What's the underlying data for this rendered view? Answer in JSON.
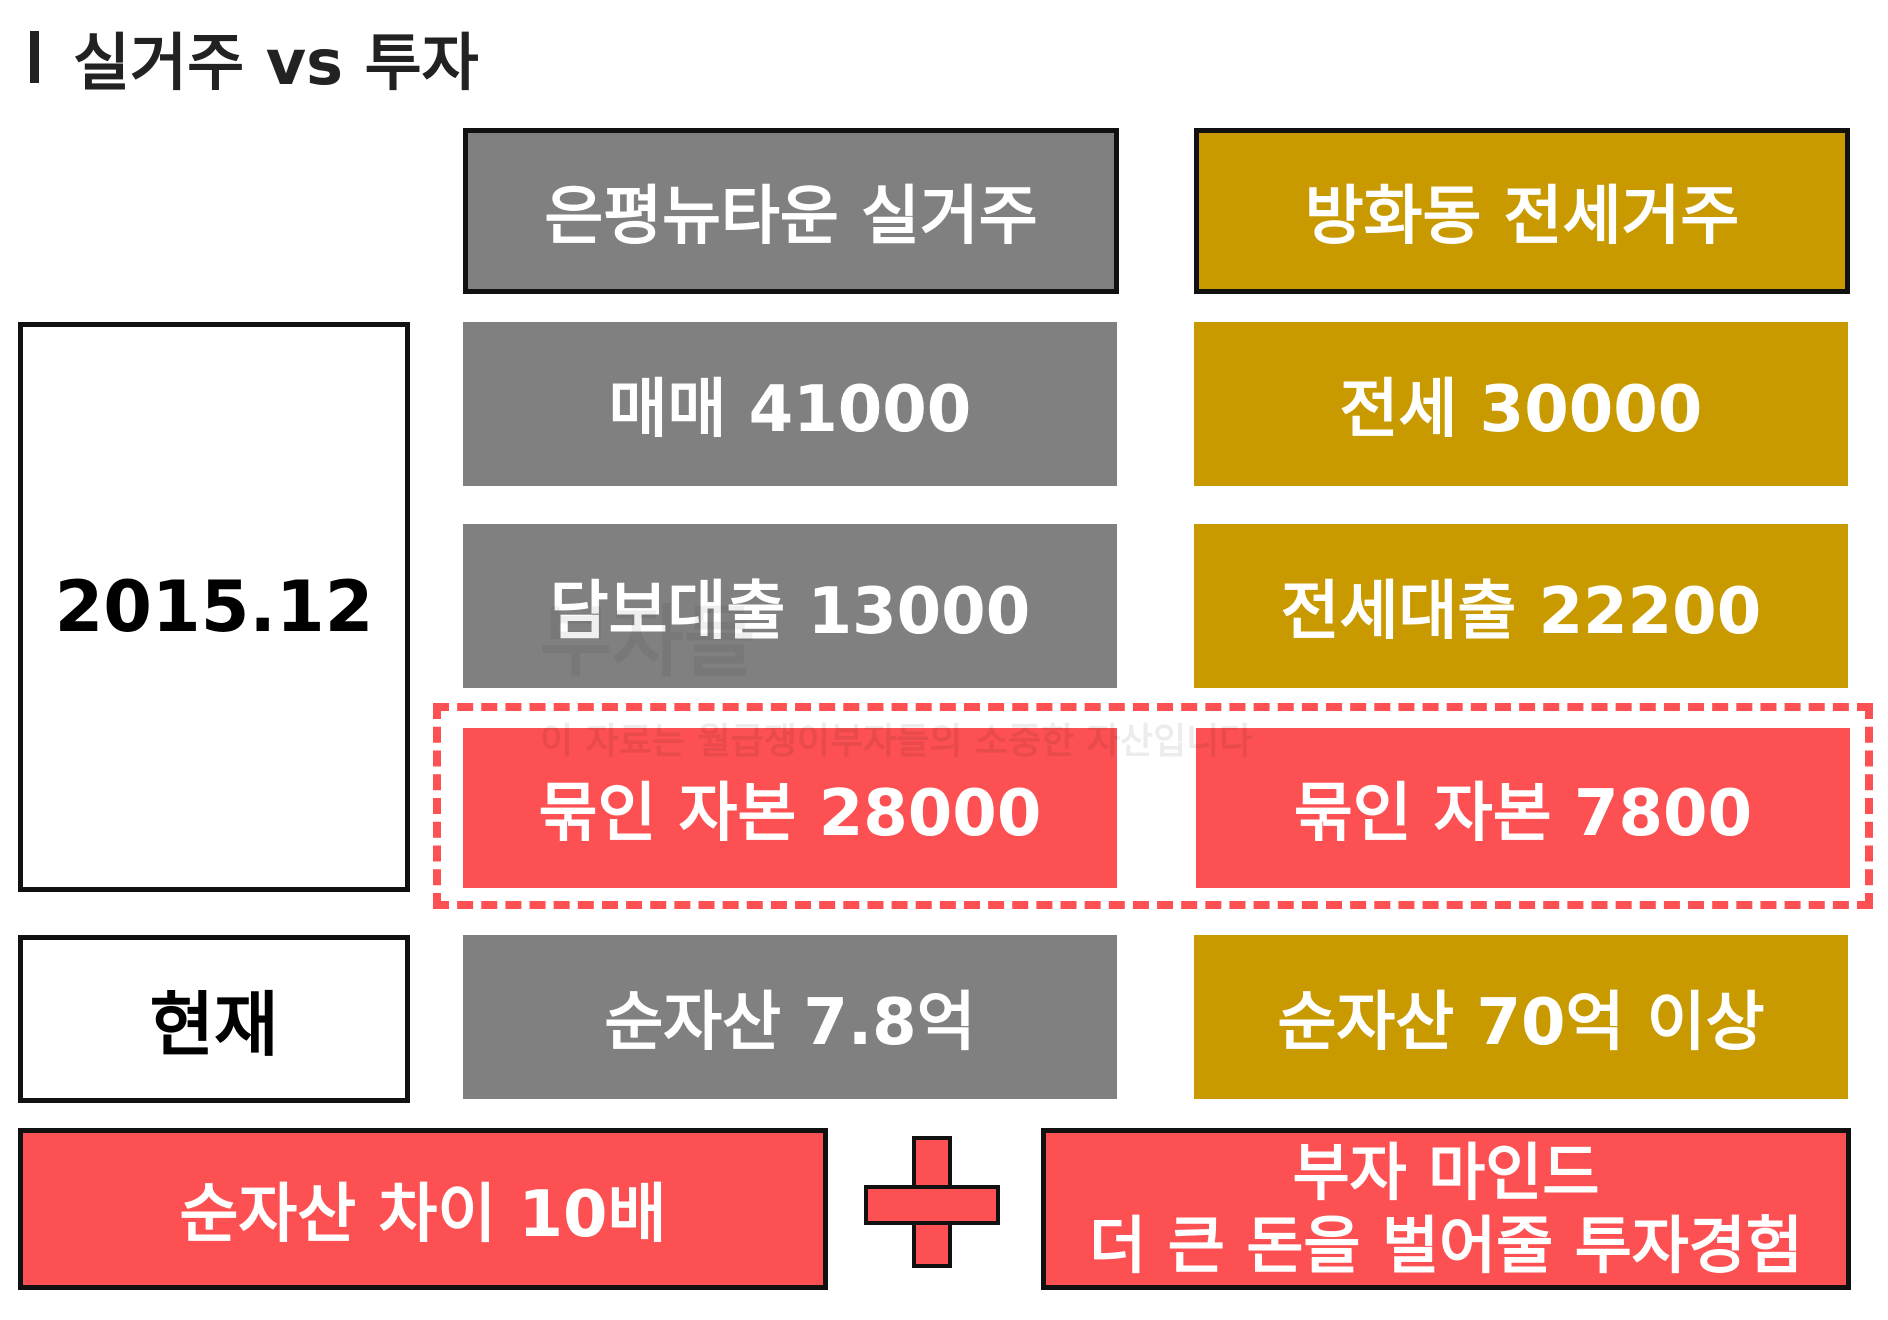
{
  "title": "실거주 vs 투자",
  "columns": {
    "left_header": "은평뉴타운 실거주",
    "right_header": "방화동 전세거주"
  },
  "rows": {
    "date_label": "2015.12",
    "now_label": "현재",
    "left": {
      "purchase": "매매 41000",
      "loan": "담보대출 13000",
      "capital": "묶인 자본 28000",
      "net_asset": "순자산 7.8억"
    },
    "right": {
      "jeonse": "전세 30000",
      "loan": "전세대출 22200",
      "capital": "묶인 자본 7800",
      "net_asset": "순자산 70억 이상"
    }
  },
  "summary": {
    "difference": "순자산 차이 10배",
    "mind_line1": "부자 마인드",
    "mind_line2": "더 큰 돈을 벌어줄 투자경험"
  },
  "watermark": {
    "main": "부자들",
    "sub": "이 자료는 월급쟁이부자들의 소중한 자산입니다"
  },
  "colors": {
    "gray": "#808080",
    "gold": "#c89a00",
    "red": "#fc5052"
  },
  "icons": {
    "plus": "plus-icon"
  }
}
